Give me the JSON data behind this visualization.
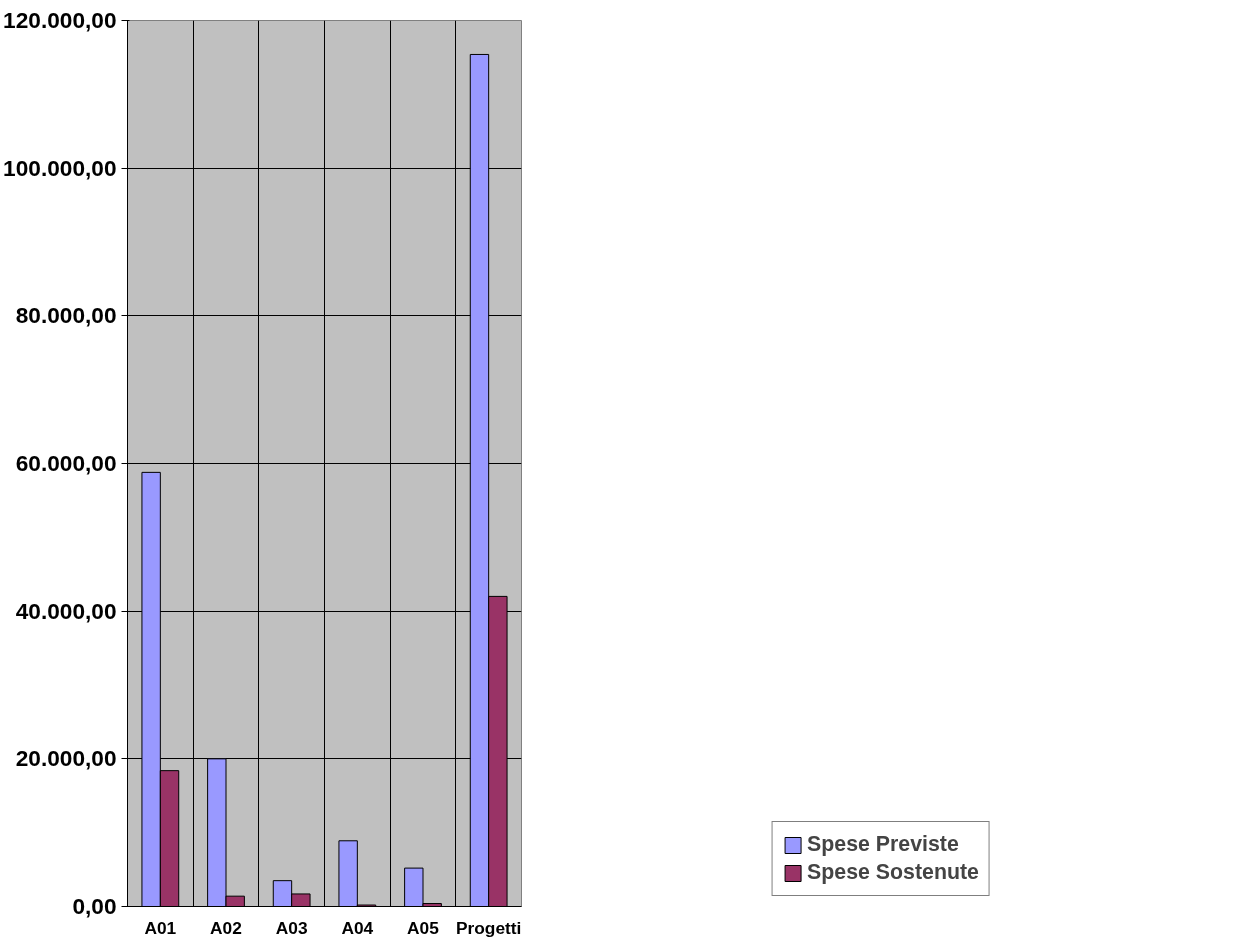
{
  "chart_data": {
    "type": "bar",
    "categories": [
      "A01",
      "A02",
      "A03",
      "A04",
      "A05",
      "Progetti"
    ],
    "series": [
      {
        "name": "Spese Previste",
        "color": "#9999ff",
        "values": [
          58800,
          20000,
          3500,
          8900,
          5200,
          115400
        ]
      },
      {
        "name": "Spese Sostenute",
        "color": "#993366",
        "values": [
          18400,
          1400,
          1700,
          200,
          400,
          42000
        ]
      }
    ],
    "ylim": [
      0,
      120000
    ],
    "yticks": [
      {
        "value": 0,
        "label": "0,00"
      },
      {
        "value": 20000,
        "label": "20.000,00"
      },
      {
        "value": 40000,
        "label": "40.000,00"
      },
      {
        "value": 60000,
        "label": "60.000,00"
      },
      {
        "value": 80000,
        "label": "80.000,00"
      },
      {
        "value": 100000,
        "label": "100.000,00"
      },
      {
        "value": 120000,
        "label": "120.000,00"
      }
    ],
    "grid": true,
    "legend": "bottom right"
  }
}
